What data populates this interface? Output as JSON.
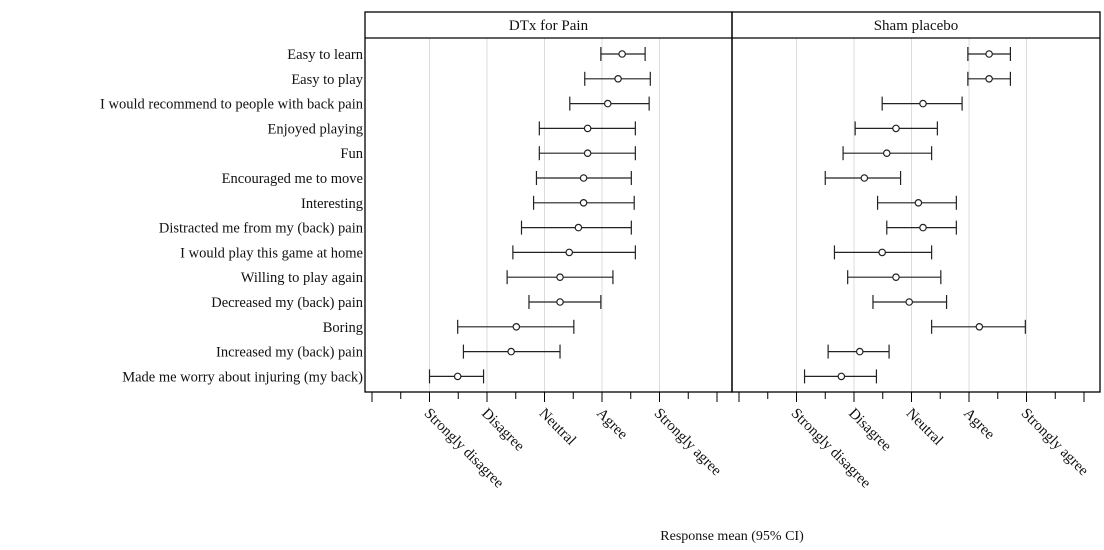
{
  "chart_data": {
    "type": "forest",
    "xlabel": "Response mean (95% CI)",
    "scale": [
      1,
      2,
      3,
      4,
      5
    ],
    "tick_labels": [
      "Strongly disagree",
      "Disagree",
      "Neutral",
      "Agree",
      "Strongly agree"
    ],
    "xlim": [
      0.0,
      6.1
    ],
    "grid": true,
    "items": [
      "Easy to learn",
      "Easy to play",
      "I would recommend to people with back pain",
      "Enjoyed playing",
      "Fun",
      "Encouraged me to move",
      "Interesting",
      "Distracted me from my (back) pain",
      "I would play this game at home",
      "Willing to play again",
      "Decreased my (back) pain",
      "Boring",
      "Increased my (back) pain",
      "Made me worry about injuring (my back)"
    ],
    "panels": [
      {
        "title": "DTx for Pain",
        "mean": [
          4.35,
          4.28,
          4.1,
          3.75,
          3.75,
          3.68,
          3.68,
          3.59,
          3.43,
          3.27,
          3.27,
          2.51,
          2.42,
          1.49
        ],
        "lower": [
          3.98,
          3.7,
          3.44,
          2.91,
          2.91,
          2.86,
          2.81,
          2.6,
          2.45,
          2.35,
          2.73,
          1.49,
          1.59,
          1.0
        ],
        "upper": [
          4.75,
          4.84,
          4.82,
          4.58,
          4.58,
          4.51,
          4.56,
          4.51,
          4.58,
          4.19,
          3.98,
          3.51,
          3.27,
          1.94
        ]
      },
      {
        "title": "Sham placebo",
        "mean": [
          4.35,
          4.35,
          3.2,
          2.73,
          2.57,
          2.18,
          3.12,
          3.2,
          2.49,
          2.73,
          2.96,
          4.18,
          2.1,
          1.78
        ],
        "lower": [
          3.98,
          3.98,
          2.49,
          2.02,
          1.81,
          1.5,
          2.41,
          2.57,
          1.66,
          1.89,
          2.33,
          3.35,
          1.55,
          1.14
        ],
        "upper": [
          4.72,
          4.72,
          3.88,
          3.45,
          3.35,
          2.81,
          3.78,
          3.78,
          3.35,
          3.51,
          3.61,
          4.98,
          2.61,
          2.39
        ]
      }
    ]
  }
}
